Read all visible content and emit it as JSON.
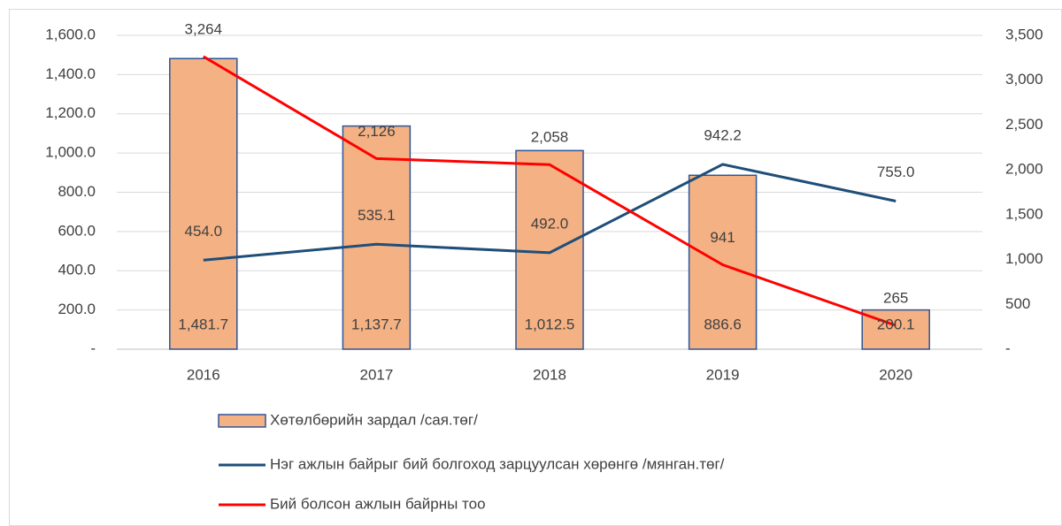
{
  "chart_data": {
    "type": "combo",
    "categories": [
      "2016",
      "2017",
      "2018",
      "2019",
      "2020"
    ],
    "ylim": [
      0,
      1600
    ],
    "yticks": [
      {
        "value": 0,
        "label": "-"
      },
      {
        "value": 200,
        "label": "200.0"
      },
      {
        "value": 400,
        "label": "400.0"
      },
      {
        "value": 600,
        "label": "600.0"
      },
      {
        "value": 800,
        "label": "800.0"
      },
      {
        "value": 1000,
        "label": "1,000.0"
      },
      {
        "value": 1200,
        "label": "1,200.0"
      },
      {
        "value": 1400,
        "label": "1,400.0"
      },
      {
        "value": 1600,
        "label": "1,600.0"
      }
    ],
    "y2lim": [
      0,
      3500
    ],
    "y2ticks": [
      {
        "value": 0,
        "label": "-"
      },
      {
        "value": 500,
        "label": "500"
      },
      {
        "value": 1000,
        "label": "1,000"
      },
      {
        "value": 1500,
        "label": "1,500"
      },
      {
        "value": 2000,
        "label": "2,000"
      },
      {
        "value": 2500,
        "label": "2,500"
      },
      {
        "value": 3000,
        "label": "3,000"
      },
      {
        "value": 3500,
        "label": "3,500"
      }
    ],
    "grid": true,
    "legend": "bottom",
    "series": [
      {
        "name": "Хөтөлбөрийн зардал /сая.төг/",
        "type": "bar",
        "color": "#f4b183",
        "values": [
          1481.7,
          1137.7,
          1012.5,
          886.6,
          200.1
        ],
        "value_labels": [
          "1,481.7",
          "1,137.7",
          "1,012.5",
          "886.6",
          "200.1"
        ]
      },
      {
        "name": "Нэг ажлын байрыг бий болгоход зарцуулсан хөрөнгө /мянган.төг/",
        "type": "line",
        "color": "#1f4e79",
        "values": [
          454.0,
          535.1,
          492.0,
          942.2,
          755.0
        ],
        "value_labels": [
          "454.0",
          "535.1",
          "492.0",
          "942.2",
          "755.0"
        ]
      },
      {
        "name": "Бий болсон ажлын байрны тоо",
        "type": "line",
        "axis": "y2",
        "color": "#ff0000",
        "values": [
          3264,
          2126,
          2058,
          941,
          265
        ],
        "value_labels": [
          "3,264",
          "2,126",
          "2,058",
          "941",
          "265"
        ]
      }
    ]
  }
}
